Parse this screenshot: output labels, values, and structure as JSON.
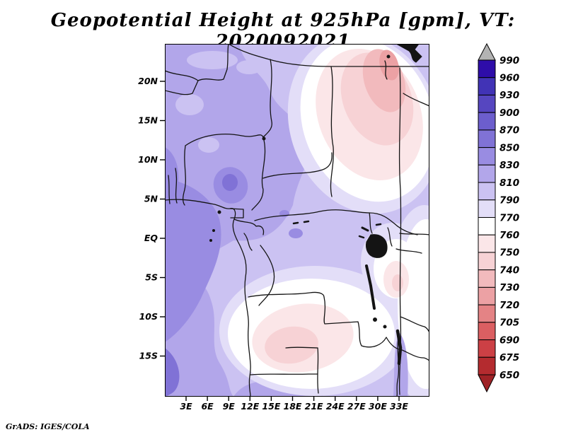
{
  "title": "Geopotential Height at 925hPa [gpm], VT: 2020092021",
  "attribution": "GrADS: IGES/COLA",
  "chart_data": {
    "type": "heatmap",
    "title": "Geopotential Height at 925hPa [gpm], VT: 2020092021",
    "variable": "Geopotential Height",
    "level": "925hPa",
    "units": "gpm",
    "valid_time": "2020092021",
    "region": {
      "lon_range_e": [
        0,
        38
      ],
      "lat_range": [
        "20S",
        "25N"
      ]
    },
    "x_axis": {
      "ticks": [
        "3E",
        "6E",
        "9E",
        "12E",
        "15E",
        "18E",
        "21E",
        "24E",
        "27E",
        "30E",
        "33E"
      ]
    },
    "y_axis": {
      "ticks": [
        "20N",
        "15N",
        "10N",
        "5N",
        "EQ",
        "5S",
        "10S",
        "15S"
      ]
    },
    "colorbar": {
      "orientation": "vertical",
      "boundary_labels": [
        "990",
        "960",
        "930",
        "900",
        "870",
        "850",
        "830",
        "810",
        "790",
        "770",
        "760",
        "750",
        "740",
        "730",
        "720",
        "705",
        "690",
        "675",
        "650"
      ],
      "boundary_values": [
        990,
        960,
        930,
        900,
        870,
        850,
        830,
        810,
        790,
        770,
        760,
        750,
        740,
        730,
        720,
        705,
        690,
        675,
        650
      ],
      "box_colors_top_to_bottom": [
        "#2e0da9",
        "#4133b6",
        "#5646c0",
        "#6c5ecd",
        "#8072d6",
        "#998ce2",
        "#b2a6ea",
        "#cbc2f2",
        "#e3def8",
        "#ffffff",
        "#fbe6e8",
        "#f7d2d5",
        "#f2babd",
        "#eca1a4",
        "#e48385",
        "#db5f62",
        "#cc4045",
        "#b42b2f"
      ],
      "over_triangle_color": "#b3b3b3",
      "under_triangle_color": "#9f2226"
    },
    "features": [
      {
        "desc": "Broad area of high geopotential heights (790-870 gpm, purple shading) over western and central Africa and the southeast Atlantic; darkest purple (850-870 gpm) near the Cameroon coast and the far southwest corner"
      },
      {
        "desc": "Pronounced low-height region (720-760 gpm, pink/red shading) over the northeast (Sudan / Red Sea sector), minimum near 29E, 20N"
      },
      {
        "desc": "Secondary low-height region (740-760 gpm, pale pink) over the Angola/Zambia sector near 16E, 13S"
      },
      {
        "desc": "Near-765 gpm white band separating the purple and pink regimes across the east and south-central map"
      }
    ]
  }
}
